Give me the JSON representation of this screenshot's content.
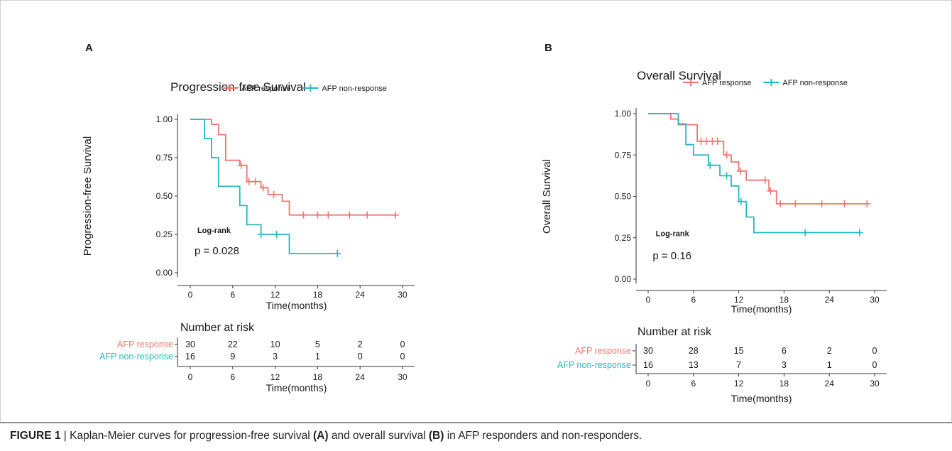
{
  "caption": {
    "figure_label": "FIGURE 1",
    "separator": "|",
    "text_before_a": "Kaplan-Meier curves for progression-free survival",
    "label_a": "(A)",
    "text_middle": "and overall survival",
    "label_b": "(B)",
    "text_after_b": "in AFP responders and non-responders."
  },
  "colors": {
    "response": "#f0776e",
    "non_response": "#25b8bf",
    "axis": "#333333",
    "text": "#1a1a1a"
  },
  "chart_data": [
    {
      "type": "line",
      "panel_label": "A",
      "title": "Progression-free Survival",
      "xlabel": "Time(months)",
      "ylabel": "Progression-free Survival",
      "xlim": [
        0,
        30
      ],
      "ylim": [
        0,
        1
      ],
      "x_ticks": [
        0,
        6,
        12,
        18,
        24,
        30
      ],
      "y_ticks": [
        "0.00",
        "0.25",
        "0.50",
        "0.75",
        "1.00"
      ],
      "legend_position": "top",
      "grid": false,
      "series": [
        {
          "name": "AFP response",
          "color": "#f0776e",
          "steps": [
            [
              0,
              1.0
            ],
            [
              3,
              0.967
            ],
            [
              4,
              0.9
            ],
            [
              5,
              0.733
            ],
            [
              7,
              0.7
            ],
            [
              8,
              0.594
            ],
            [
              10,
              0.554
            ],
            [
              11,
              0.51
            ],
            [
              13,
              0.466
            ],
            [
              14,
              0.376
            ],
            [
              29,
              0.376
            ]
          ],
          "censors": [
            [
              7.2,
              0.7
            ],
            [
              8.3,
              0.594
            ],
            [
              9.2,
              0.594
            ],
            [
              10.3,
              0.554
            ],
            [
              11.8,
              0.51
            ],
            [
              16,
              0.376
            ],
            [
              18,
              0.376
            ],
            [
              19.5,
              0.376
            ],
            [
              22.5,
              0.376
            ],
            [
              25,
              0.376
            ],
            [
              29,
              0.376
            ]
          ]
        },
        {
          "name": "AFP non-response",
          "color": "#25b8bf",
          "steps": [
            [
              0,
              1.0
            ],
            [
              2,
              0.875
            ],
            [
              3,
              0.75
            ],
            [
              4,
              0.563
            ],
            [
              7,
              0.438
            ],
            [
              8,
              0.313
            ],
            [
              10,
              0.25
            ],
            [
              14,
              0.125
            ],
            [
              20.8,
              0.125
            ]
          ],
          "censors": [
            [
              10,
              0.25
            ],
            [
              12.2,
              0.25
            ],
            [
              20.8,
              0.125
            ]
          ]
        }
      ],
      "annotations": [
        {
          "text": "Log-rank",
          "x": 1,
          "y": 0.26
        },
        {
          "text": "p = 0.028",
          "x": 0.6,
          "y": 0.12
        }
      ],
      "risk_table": {
        "title": "Number at risk",
        "x_ticks": [
          0,
          6,
          12,
          18,
          24,
          30
        ],
        "xlabel": "Time(months)",
        "rows": [
          {
            "name": "AFP response",
            "values": [
              "30",
              "22",
              "10",
              "5",
              "2",
              "0"
            ]
          },
          {
            "name": "AFP non-response",
            "values": [
              "16",
              "9",
              "3",
              "1",
              "0",
              "0"
            ]
          }
        ]
      }
    },
    {
      "type": "line",
      "panel_label": "B",
      "title": "Overall Survival",
      "xlabel": "Time(months)",
      "ylabel": "Overall Survival",
      "xlim": [
        0,
        30
      ],
      "ylim": [
        0,
        1
      ],
      "x_ticks": [
        0,
        6,
        12,
        18,
        24,
        30
      ],
      "y_ticks": [
        "0.00",
        "0.25",
        "0.50",
        "0.75",
        "1.00"
      ],
      "legend_position": "top",
      "grid": false,
      "series": [
        {
          "name": "AFP response",
          "color": "#f0776e",
          "steps": [
            [
              0,
              1.0
            ],
            [
              3,
              0.967
            ],
            [
              4,
              0.933
            ],
            [
              6.5,
              0.833
            ],
            [
              10,
              0.75
            ],
            [
              11,
              0.708
            ],
            [
              12,
              0.653
            ],
            [
              13,
              0.598
            ],
            [
              16,
              0.533
            ],
            [
              17,
              0.455
            ],
            [
              29,
              0.455
            ]
          ],
          "censors": [
            [
              7,
              0.833
            ],
            [
              7.7,
              0.833
            ],
            [
              8.5,
              0.833
            ],
            [
              9.2,
              0.833
            ],
            [
              10.4,
              0.75
            ],
            [
              12.2,
              0.653
            ],
            [
              15.5,
              0.598
            ],
            [
              16.2,
              0.533
            ],
            [
              17.5,
              0.455
            ],
            [
              19.5,
              0.455
            ],
            [
              23,
              0.455
            ],
            [
              26,
              0.455
            ],
            [
              29,
              0.455
            ]
          ]
        },
        {
          "name": "AFP non-response",
          "color": "#25b8bf",
          "steps": [
            [
              0,
              1.0
            ],
            [
              4,
              0.938
            ],
            [
              5,
              0.813
            ],
            [
              6,
              0.75
            ],
            [
              8,
              0.688
            ],
            [
              9.5,
              0.625
            ],
            [
              11,
              0.563
            ],
            [
              12,
              0.469
            ],
            [
              13,
              0.375
            ],
            [
              14,
              0.281
            ],
            [
              28,
              0.281
            ]
          ],
          "censors": [
            [
              8.2,
              0.688
            ],
            [
              10.4,
              0.625
            ],
            [
              12.3,
              0.469
            ],
            [
              20.8,
              0.281
            ],
            [
              28,
              0.281
            ]
          ]
        }
      ],
      "annotations": [
        {
          "text": "Log-rank",
          "x": 1,
          "y": 0.26
        },
        {
          "text": "p = 0.16",
          "x": 0.6,
          "y": 0.12
        }
      ],
      "risk_table": {
        "title": "Number at risk",
        "x_ticks": [
          0,
          6,
          12,
          18,
          24,
          30
        ],
        "xlabel": "Time(months)",
        "rows": [
          {
            "name": "AFP response",
            "values": [
              "30",
              "28",
              "15",
              "6",
              "2",
              "0"
            ]
          },
          {
            "name": "AFP non-response",
            "values": [
              "16",
              "13",
              "7",
              "3",
              "1",
              "0"
            ]
          }
        ]
      }
    }
  ]
}
